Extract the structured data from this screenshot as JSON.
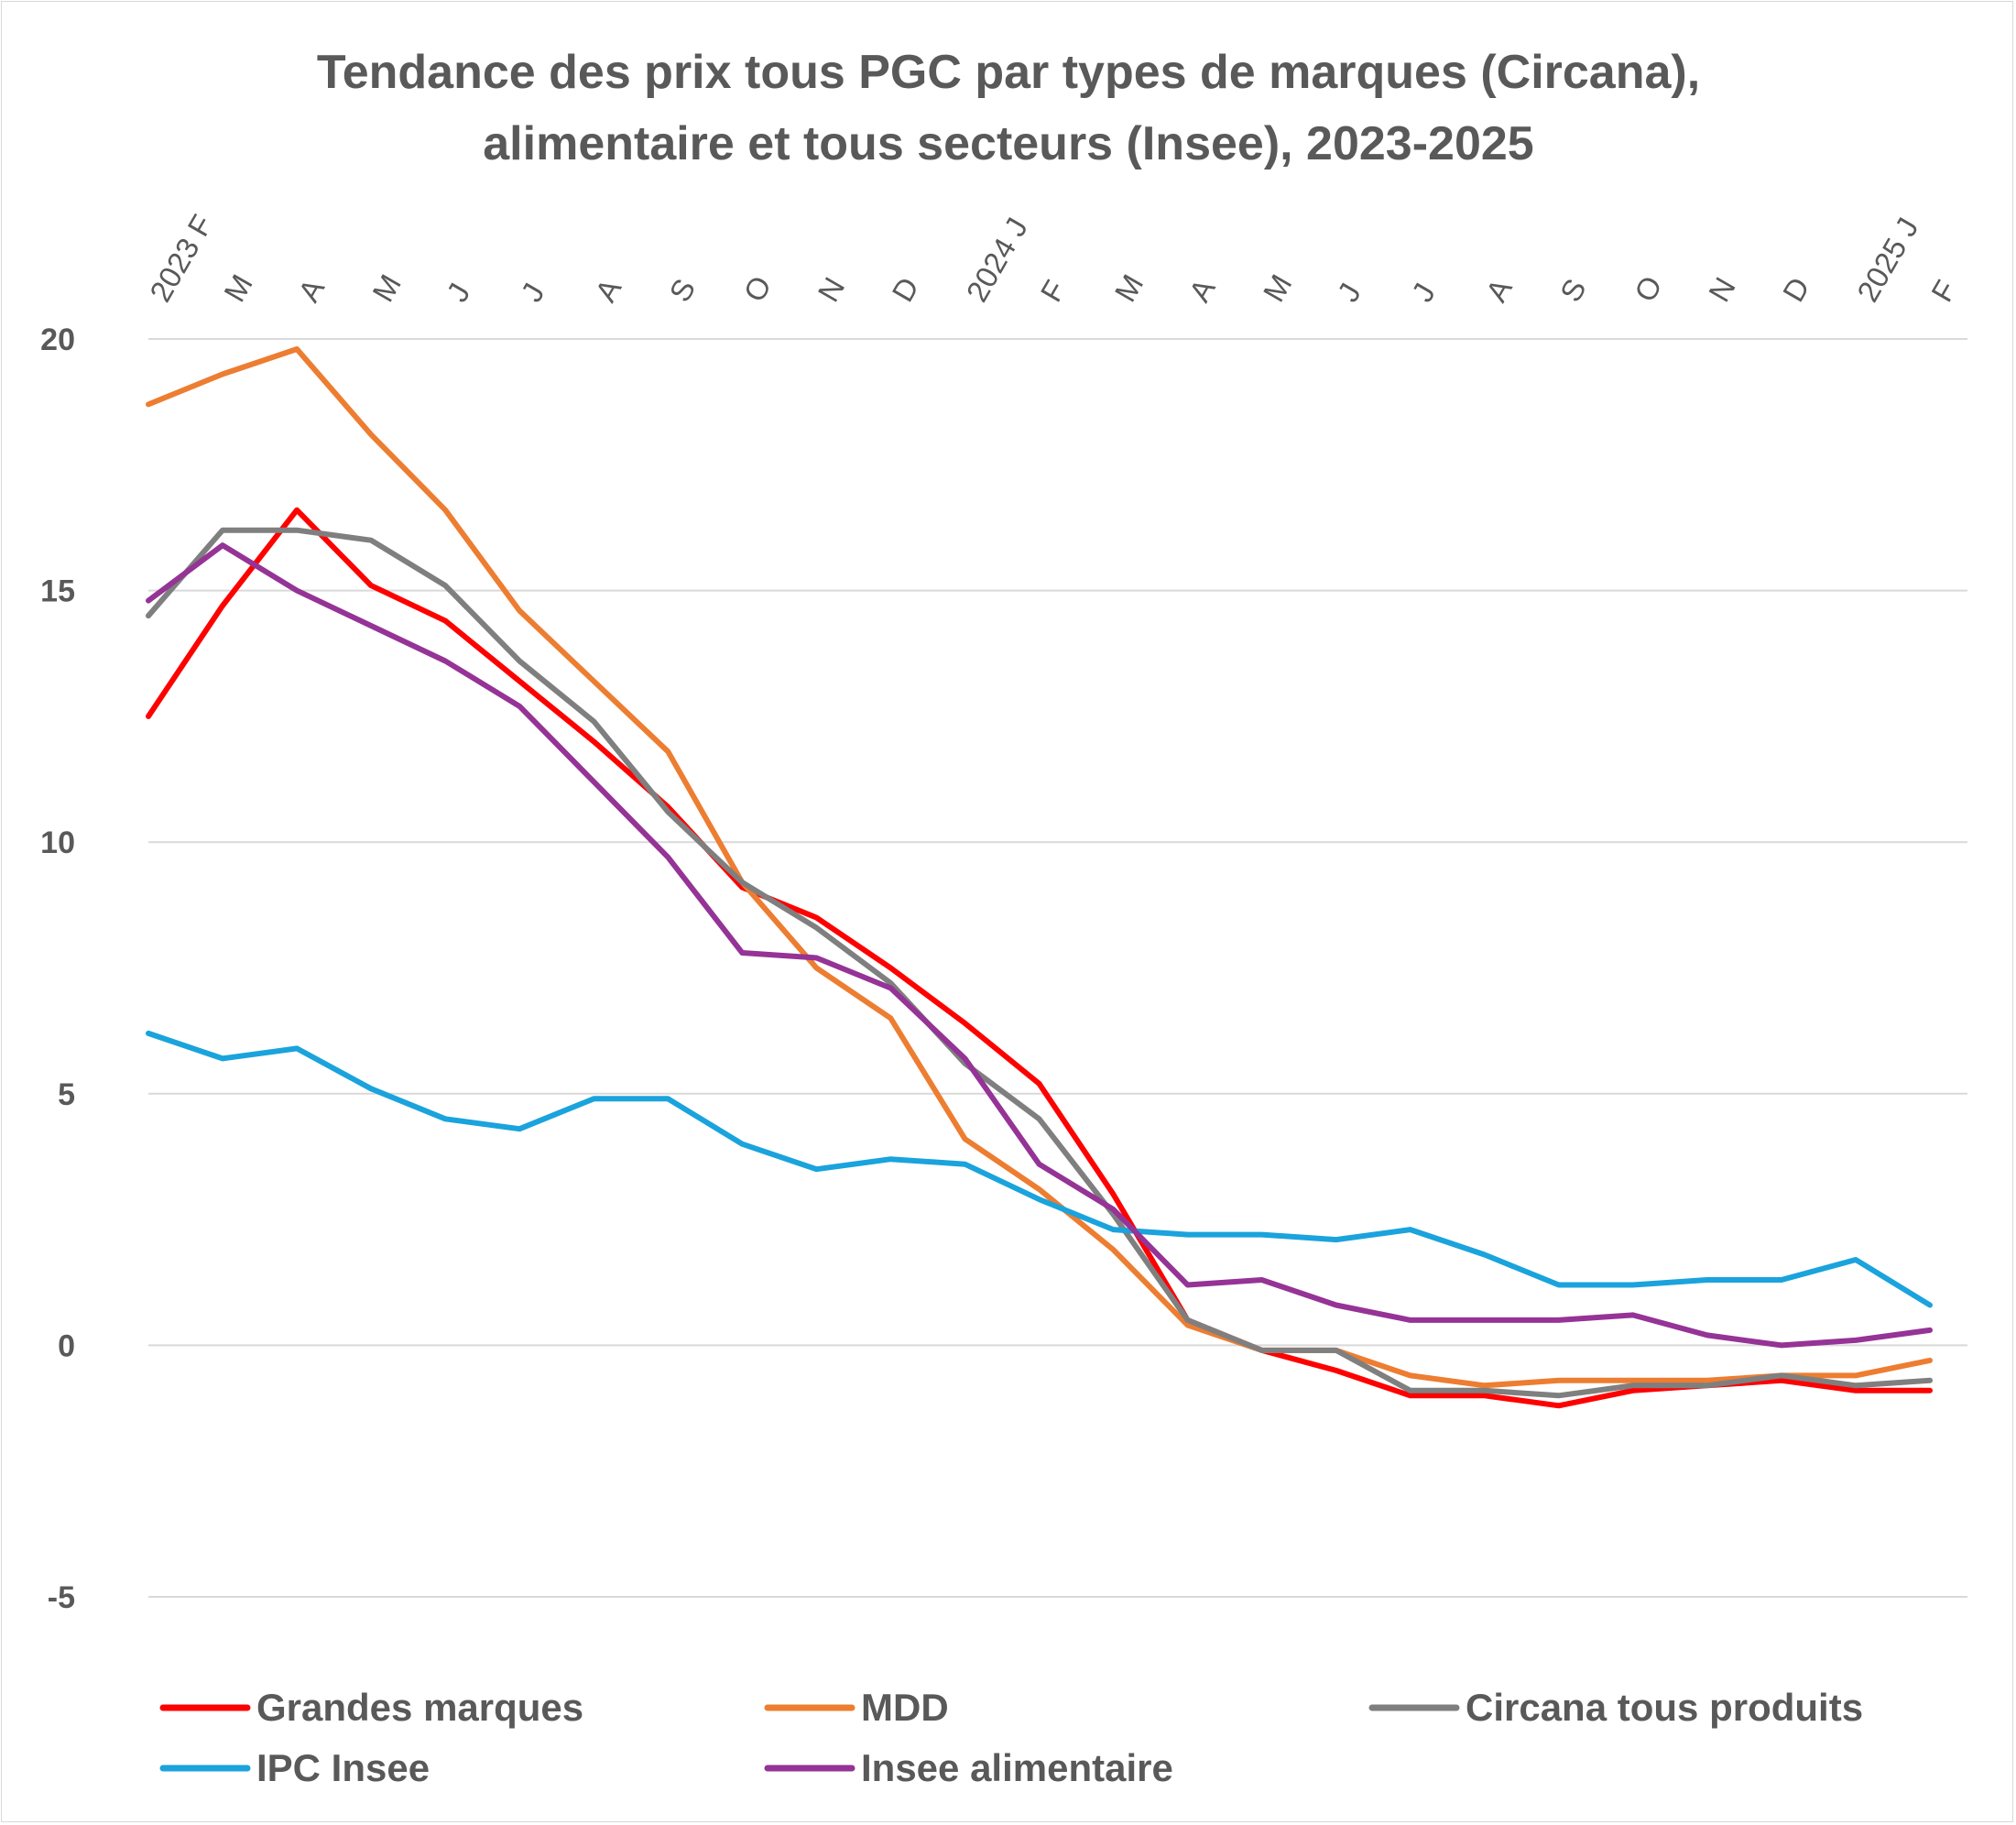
{
  "chart_data": {
    "type": "line",
    "title": [
      "Tendance des prix tous PGC par types de marques (Circana),",
      "alimentaire et tous secteurs (Insee), 2023-2025"
    ],
    "xlabel": "",
    "ylabel": "",
    "ylim": [
      -5,
      20
    ],
    "yticks": [
      "20",
      "15",
      "10",
      "5",
      "0",
      "-5"
    ],
    "grid": true,
    "legend_position": "bottom",
    "categories": [
      "2023 F",
      "M",
      "A",
      "M",
      "J",
      "J",
      "A",
      "S",
      "O",
      "N",
      "D",
      "2024 J",
      "F",
      "M",
      "A",
      "M",
      "J",
      "J",
      "A",
      "S",
      "O",
      "N",
      "D",
      "2025 J",
      "F"
    ],
    "series": [
      {
        "name": "Grandes marques",
        "color": "#ff0000",
        "values": [
          12.5,
          14.7,
          16.6,
          15.1,
          14.4,
          13.2,
          12.0,
          10.7,
          9.1,
          8.5,
          7.5,
          6.4,
          5.2,
          3.0,
          0.5,
          -0.1,
          -0.5,
          -1.0,
          -1.0,
          -1.2,
          -0.9,
          -0.8,
          -0.7,
          -0.9,
          -0.9
        ]
      },
      {
        "name": "MDD",
        "color": "#ed7d31",
        "values": [
          18.7,
          19.3,
          19.8,
          18.1,
          16.6,
          14.6,
          13.2,
          11.8,
          9.2,
          7.5,
          6.5,
          4.1,
          3.1,
          1.9,
          0.4,
          -0.1,
          -0.1,
          -0.6,
          -0.8,
          -0.7,
          -0.7,
          -0.7,
          -0.6,
          -0.6,
          -0.3
        ]
      },
      {
        "name": "Circana tous produits",
        "color": "#7f7f7f",
        "values": [
          14.5,
          16.2,
          16.2,
          16.0,
          15.1,
          13.6,
          12.4,
          10.6,
          9.2,
          8.3,
          7.2,
          5.6,
          4.5,
          2.6,
          0.5,
          -0.1,
          -0.1,
          -0.9,
          -0.9,
          -1.0,
          -0.8,
          -0.8,
          -0.6,
          -0.8,
          -0.7
        ]
      },
      {
        "name": "IPC Insee",
        "color": "#1aa3dc",
        "values": [
          6.2,
          5.7,
          5.9,
          5.1,
          4.5,
          4.3,
          4.9,
          4.9,
          4.0,
          3.5,
          3.7,
          3.6,
          2.9,
          2.3,
          2.2,
          2.2,
          2.1,
          2.3,
          1.8,
          1.2,
          1.2,
          1.3,
          1.3,
          1.7,
          0.8
        ]
      },
      {
        "name": "Insee alimentaire",
        "color": "#953396",
        "values": [
          14.8,
          15.9,
          15.0,
          14.3,
          13.6,
          12.7,
          11.2,
          9.7,
          7.8,
          7.7,
          7.1,
          5.7,
          3.6,
          2.7,
          1.2,
          1.3,
          0.8,
          0.5,
          0.5,
          0.5,
          0.6,
          0.2,
          0.0,
          0.1,
          0.3
        ]
      }
    ]
  }
}
